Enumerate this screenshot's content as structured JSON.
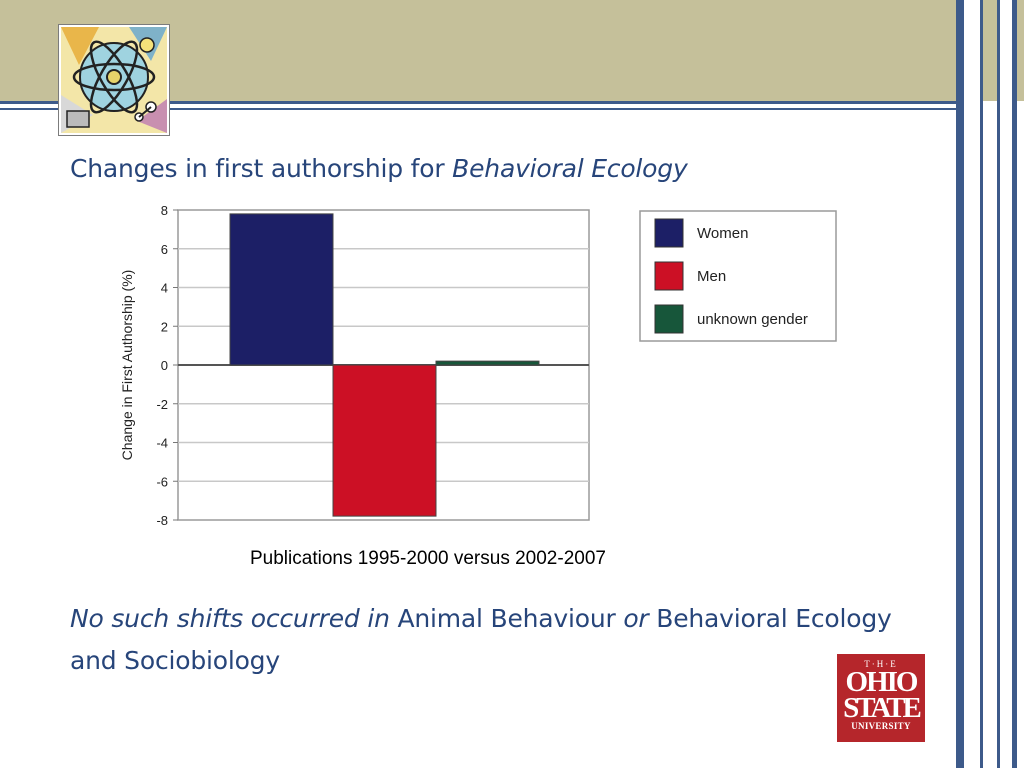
{
  "slide": {
    "title_prefix": "Changes in first authorship for ",
    "title_italic": "Behavioral Ecology",
    "caption": "Publications 1995-2000 versus 2002-2007",
    "note_italic_1": "No such shifts occurred in",
    "note_text_1": " Animal Behaviour ",
    "note_italic_2": "or",
    "note_text_2": " Behavioral Ecology and Sociobiology",
    "logo": {
      "the": "T·H·E",
      "ohio": "OHIO",
      "state": "STATE",
      "university": "UNIVERSITY"
    }
  },
  "chart_data": {
    "type": "bar",
    "title": "",
    "xlabel": "",
    "ylabel": "Change in First Authorship (%)",
    "ylim": [
      -8,
      8
    ],
    "yticks": [
      8,
      6,
      4,
      2,
      0,
      -2,
      -4,
      -6,
      -8
    ],
    "grid": true,
    "legend_position": "right",
    "series": [
      {
        "name": "Women",
        "value": 7.8,
        "color": "#1c1f66"
      },
      {
        "name": "Men",
        "value": -7.8,
        "color": "#cc1025"
      },
      {
        "name": "unknown gender",
        "value": 0.2,
        "color": "#17563a"
      }
    ]
  },
  "colors": {
    "header": "#c5c09a",
    "rule": "#3d5a8a",
    "title_text": "#27457a",
    "osu_red": "#b5262b"
  }
}
